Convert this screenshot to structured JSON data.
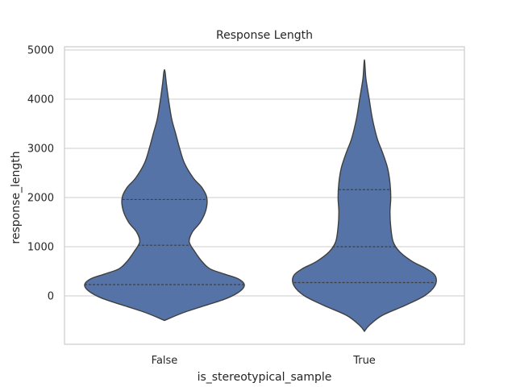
{
  "chart_data": {
    "type": "violin",
    "title": "Response Length",
    "xlabel": "is_stereotypical_sample",
    "ylabel": "response_length",
    "ylim": [
      -1000,
      5100
    ],
    "yticks": [
      0,
      1000,
      2000,
      3000,
      4000,
      5000
    ],
    "grid": true,
    "color": "#5573a6",
    "categories": [
      "False",
      "True"
    ],
    "violins": [
      {
        "category": "False",
        "min": -500,
        "max": 4600,
        "quartiles": [
          230,
          1030,
          1960
        ],
        "profile": [
          [
            -500,
            0.0
          ],
          [
            -350,
            0.22
          ],
          [
            -200,
            0.5
          ],
          [
            -50,
            0.78
          ],
          [
            100,
            0.95
          ],
          [
            230,
            1.0
          ],
          [
            350,
            0.92
          ],
          [
            450,
            0.74
          ],
          [
            550,
            0.57
          ],
          [
            700,
            0.47
          ],
          [
            900,
            0.38
          ],
          [
            1100,
            0.31
          ],
          [
            1300,
            0.35
          ],
          [
            1500,
            0.45
          ],
          [
            1750,
            0.52
          ],
          [
            2000,
            0.53
          ],
          [
            2200,
            0.47
          ],
          [
            2400,
            0.36
          ],
          [
            2700,
            0.25
          ],
          [
            3000,
            0.19
          ],
          [
            3300,
            0.14
          ],
          [
            3600,
            0.09
          ],
          [
            4000,
            0.05
          ],
          [
            4300,
            0.025
          ],
          [
            4600,
            0.0
          ]
        ]
      },
      {
        "category": "True",
        "min": -720,
        "max": 4800,
        "quartiles": [
          270,
          1000,
          2160
        ],
        "profile": [
          [
            -720,
            0.0
          ],
          [
            -600,
            0.06
          ],
          [
            -400,
            0.22
          ],
          [
            -200,
            0.5
          ],
          [
            0,
            0.75
          ],
          [
            200,
            0.88
          ],
          [
            400,
            0.89
          ],
          [
            550,
            0.78
          ],
          [
            700,
            0.6
          ],
          [
            900,
            0.44
          ],
          [
            1100,
            0.36
          ],
          [
            1400,
            0.33
          ],
          [
            1700,
            0.32
          ],
          [
            2000,
            0.33
          ],
          [
            2300,
            0.32
          ],
          [
            2600,
            0.29
          ],
          [
            2900,
            0.23
          ],
          [
            3200,
            0.16
          ],
          [
            3600,
            0.1
          ],
          [
            4000,
            0.06
          ],
          [
            4400,
            0.02
          ],
          [
            4600,
            0.01
          ],
          [
            4800,
            0.0
          ]
        ]
      }
    ]
  }
}
